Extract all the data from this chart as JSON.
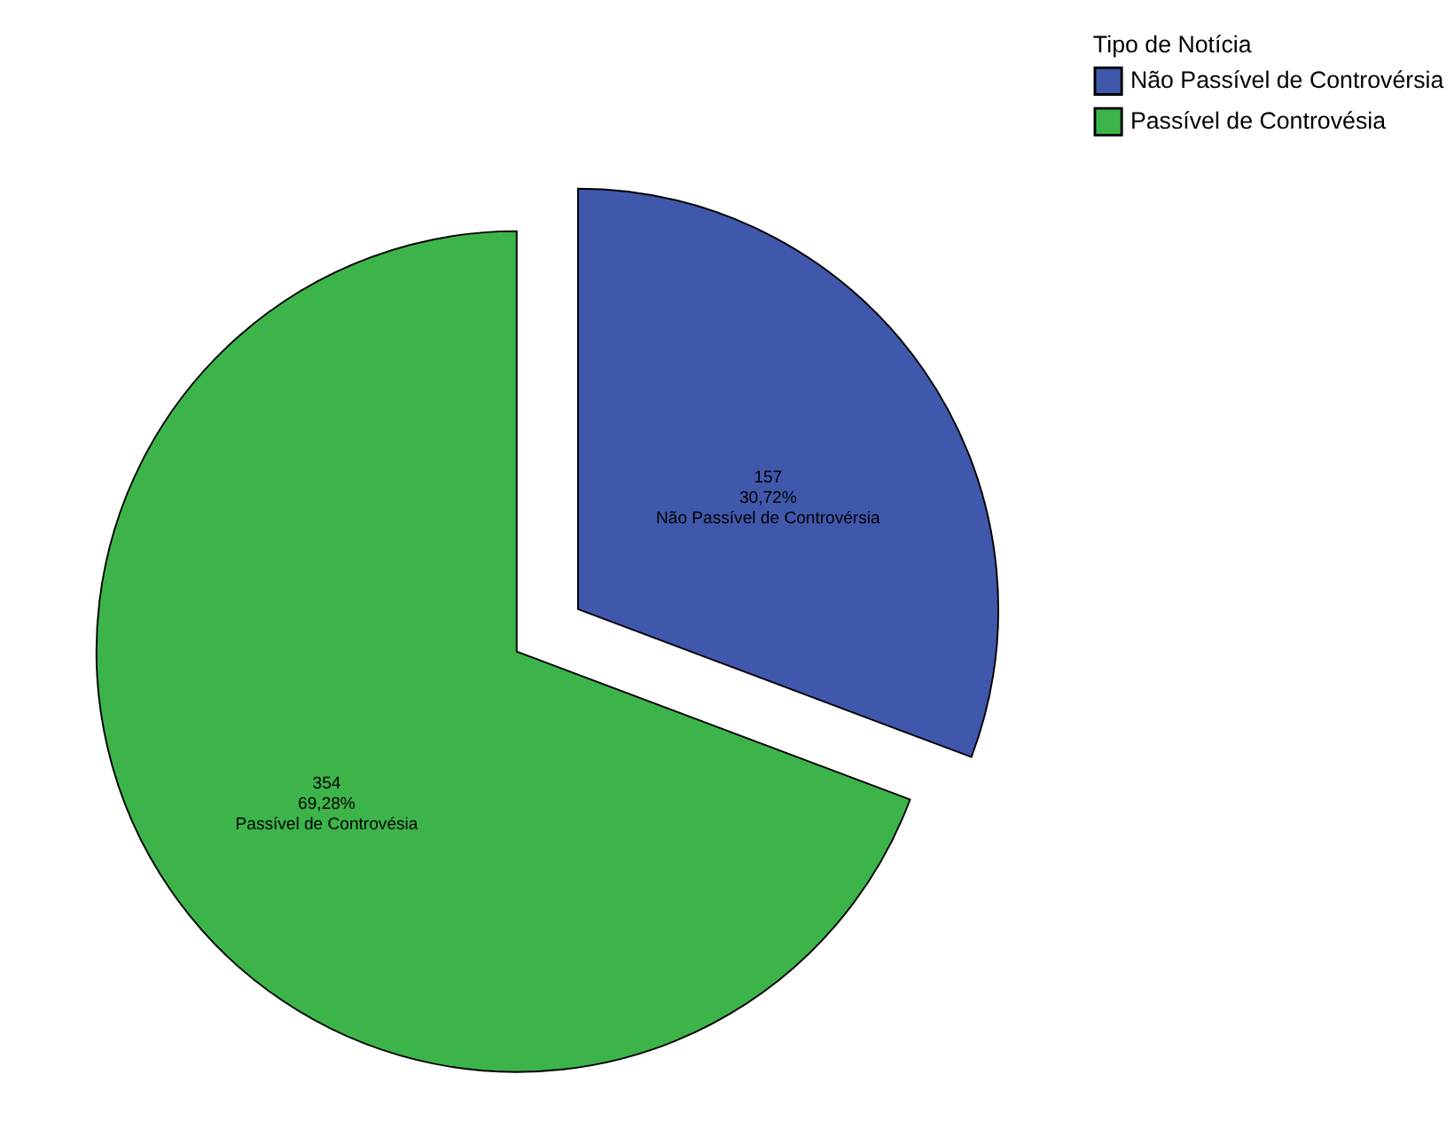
{
  "chart_data": {
    "type": "pie",
    "categories": [
      "Não Passível de Controvérsia",
      "Passível de Controvésia"
    ],
    "values": [
      157,
      354
    ],
    "colors": [
      "#3f58ac",
      "#3cb44a"
    ],
    "value_labels": [
      "157\n30,72%\nNão Passível de Controvérsia",
      "354\n69,28%\nPassível de Controvésia"
    ],
    "legend_title": "Tipo de Notícia",
    "legend": "top right"
  }
}
